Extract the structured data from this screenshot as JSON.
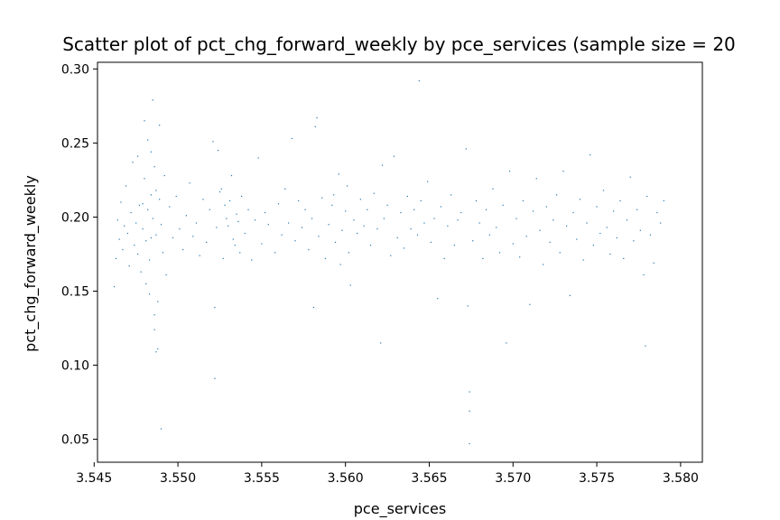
{
  "chart_data": {
    "type": "scatter",
    "title": "Scatter plot of pct_chg_forward_weekly by pce_services (sample size = 20",
    "xlabel": "pce_services",
    "ylabel": "pct_chg_forward_weekly",
    "xlim": [
      3.5452,
      3.5813
    ],
    "ylim": [
      0.0345,
      0.3045
    ],
    "xticks": [
      "3.545",
      "3.550",
      "3.555",
      "3.560",
      "3.565",
      "3.570",
      "3.575",
      "3.580"
    ],
    "xtick_values": [
      3.545,
      3.55,
      3.555,
      3.56,
      3.565,
      3.57,
      3.575,
      3.58
    ],
    "yticks": [
      "0.05",
      "0.10",
      "0.15",
      "0.20",
      "0.25",
      "0.30"
    ],
    "ytick_values": [
      0.05,
      0.1,
      0.15,
      0.2,
      0.25,
      0.3
    ],
    "grid": false,
    "point_color": "#1f77b4",
    "marker": "pixel",
    "points": [
      [
        3.5462,
        0.153
      ],
      [
        3.5463,
        0.172
      ],
      [
        3.5464,
        0.198
      ],
      [
        3.5465,
        0.185
      ],
      [
        3.5466,
        0.21
      ],
      [
        3.5467,
        0.178
      ],
      [
        3.5468,
        0.194
      ],
      [
        3.5469,
        0.221
      ],
      [
        3.547,
        0.189
      ],
      [
        3.5471,
        0.167
      ],
      [
        3.5472,
        0.203
      ],
      [
        3.5473,
        0.237
      ],
      [
        3.5474,
        0.181
      ],
      [
        3.5475,
        0.196
      ],
      [
        3.5476,
        0.175
      ],
      [
        3.5477,
        0.208
      ],
      [
        3.5478,
        0.163
      ],
      [
        3.5479,
        0.192
      ],
      [
        3.548,
        0.226
      ],
      [
        3.5481,
        0.184
      ],
      [
        3.5482,
        0.205
      ],
      [
        3.5483,
        0.171
      ],
      [
        3.5484,
        0.215
      ],
      [
        3.5485,
        0.199
      ],
      [
        3.5486,
        0.234
      ],
      [
        3.5487,
        0.188
      ],
      [
        3.5488,
        0.143
      ],
      [
        3.5489,
        0.212
      ],
      [
        3.549,
        0.195
      ],
      [
        3.5491,
        0.176
      ],
      [
        3.5492,
        0.228
      ],
      [
        3.5493,
        0.161
      ],
      [
        3.5476,
        0.241
      ],
      [
        3.548,
        0.265
      ],
      [
        3.5485,
        0.279
      ],
      [
        3.5484,
        0.244
      ],
      [
        3.5482,
        0.252
      ],
      [
        3.5489,
        0.262
      ],
      [
        3.5486,
        0.124
      ],
      [
        3.5488,
        0.111
      ],
      [
        3.5487,
        0.109
      ],
      [
        3.549,
        0.057
      ],
      [
        3.5483,
        0.148
      ],
      [
        3.5481,
        0.155
      ],
      [
        3.5486,
        0.134
      ],
      [
        3.5479,
        0.209
      ],
      [
        3.5484,
        0.186
      ],
      [
        3.5487,
        0.218
      ],
      [
        3.5495,
        0.207
      ],
      [
        3.5497,
        0.186
      ],
      [
        3.5499,
        0.214
      ],
      [
        3.5501,
        0.192
      ],
      [
        3.5503,
        0.178
      ],
      [
        3.5505,
        0.201
      ],
      [
        3.5507,
        0.223
      ],
      [
        3.5509,
        0.187
      ],
      [
        3.5511,
        0.196
      ],
      [
        3.5513,
        0.174
      ],
      [
        3.5515,
        0.212
      ],
      [
        3.5517,
        0.183
      ],
      [
        3.5519,
        0.205
      ],
      [
        3.5521,
        0.251
      ],
      [
        3.5522,
        0.139
      ],
      [
        3.5522,
        0.091
      ],
      [
        3.5523,
        0.193
      ],
      [
        3.5525,
        0.217
      ],
      [
        3.5527,
        0.172
      ],
      [
        3.5529,
        0.199
      ],
      [
        3.5531,
        0.211
      ],
      [
        3.5533,
        0.185
      ],
      [
        3.5535,
        0.202
      ],
      [
        3.5537,
        0.176
      ],
      [
        3.5524,
        0.245
      ],
      [
        3.5526,
        0.219
      ],
      [
        3.5528,
        0.208
      ],
      [
        3.553,
        0.194
      ],
      [
        3.5532,
        0.228
      ],
      [
        3.5534,
        0.181
      ],
      [
        3.5536,
        0.197
      ],
      [
        3.5538,
        0.214
      ],
      [
        3.554,
        0.189
      ],
      [
        3.5542,
        0.205
      ],
      [
        3.5544,
        0.171
      ],
      [
        3.5546,
        0.198
      ],
      [
        3.5548,
        0.24
      ],
      [
        3.555,
        0.182
      ],
      [
        3.5552,
        0.203
      ],
      [
        3.5554,
        0.195
      ],
      [
        3.5558,
        0.176
      ],
      [
        3.556,
        0.209
      ],
      [
        3.5562,
        0.188
      ],
      [
        3.5564,
        0.219
      ],
      [
        3.5566,
        0.196
      ],
      [
        3.5568,
        0.253
      ],
      [
        3.557,
        0.184
      ],
      [
        3.5572,
        0.211
      ],
      [
        3.5574,
        0.193
      ],
      [
        3.5576,
        0.205
      ],
      [
        3.5578,
        0.178
      ],
      [
        3.558,
        0.199
      ],
      [
        3.5582,
        0.261
      ],
      [
        3.5583,
        0.267
      ],
      [
        3.5584,
        0.187
      ],
      [
        3.5586,
        0.213
      ],
      [
        3.5588,
        0.172
      ],
      [
        3.559,
        0.195
      ],
      [
        3.5592,
        0.208
      ],
      [
        3.5594,
        0.183
      ],
      [
        3.5596,
        0.229
      ],
      [
        3.5598,
        0.191
      ],
      [
        3.56,
        0.204
      ],
      [
        3.5602,
        0.176
      ],
      [
        3.5581,
        0.139
      ],
      [
        3.5593,
        0.215
      ],
      [
        3.5597,
        0.168
      ],
      [
        3.5601,
        0.221
      ],
      [
        3.5603,
        0.154
      ],
      [
        3.5605,
        0.198
      ],
      [
        3.5607,
        0.189
      ],
      [
        3.5609,
        0.212
      ],
      [
        3.5611,
        0.194
      ],
      [
        3.5613,
        0.205
      ],
      [
        3.5615,
        0.181
      ],
      [
        3.5617,
        0.216
      ],
      [
        3.5619,
        0.192
      ],
      [
        3.5621,
        0.115
      ],
      [
        3.5622,
        0.235
      ],
      [
        3.5623,
        0.199
      ],
      [
        3.5625,
        0.208
      ],
      [
        3.5627,
        0.174
      ],
      [
        3.5629,
        0.241
      ],
      [
        3.5631,
        0.186
      ],
      [
        3.5633,
        0.203
      ],
      [
        3.5635,
        0.179
      ],
      [
        3.5637,
        0.214
      ],
      [
        3.5639,
        0.192
      ],
      [
        3.5641,
        0.205
      ],
      [
        3.5643,
        0.188
      ],
      [
        3.5644,
        0.292
      ],
      [
        3.5645,
        0.211
      ],
      [
        3.5647,
        0.196
      ],
      [
        3.5649,
        0.224
      ],
      [
        3.5651,
        0.183
      ],
      [
        3.5653,
        0.199
      ],
      [
        3.5655,
        0.145
      ],
      [
        3.5657,
        0.207
      ],
      [
        3.5659,
        0.172
      ],
      [
        3.5661,
        0.194
      ],
      [
        3.5663,
        0.215
      ],
      [
        3.5665,
        0.181
      ],
      [
        3.5667,
        0.198
      ],
      [
        3.5669,
        0.203
      ],
      [
        3.5672,
        0.246
      ],
      [
        3.5673,
        0.14
      ],
      [
        3.5674,
        0.082
      ],
      [
        3.5674,
        0.069
      ],
      [
        3.5674,
        0.047
      ],
      [
        3.5676,
        0.184
      ],
      [
        3.5678,
        0.211
      ],
      [
        3.568,
        0.196
      ],
      [
        3.5682,
        0.172
      ],
      [
        3.5684,
        0.205
      ],
      [
        3.5686,
        0.188
      ],
      [
        3.5688,
        0.219
      ],
      [
        3.569,
        0.193
      ],
      [
        3.5692,
        0.176
      ],
      [
        3.5694,
        0.208
      ],
      [
        3.5696,
        0.115
      ],
      [
        3.5698,
        0.231
      ],
      [
        3.57,
        0.182
      ],
      [
        3.5702,
        0.199
      ],
      [
        3.5704,
        0.173
      ],
      [
        3.5706,
        0.211
      ],
      [
        3.5708,
        0.187
      ],
      [
        3.571,
        0.141
      ],
      [
        3.5712,
        0.204
      ],
      [
        3.5714,
        0.226
      ],
      [
        3.5716,
        0.191
      ],
      [
        3.5718,
        0.168
      ],
      [
        3.572,
        0.207
      ],
      [
        3.5722,
        0.183
      ],
      [
        3.5724,
        0.198
      ],
      [
        3.5726,
        0.215
      ],
      [
        3.5728,
        0.176
      ],
      [
        3.573,
        0.231
      ],
      [
        3.5732,
        0.194
      ],
      [
        3.5734,
        0.147
      ],
      [
        3.5736,
        0.203
      ],
      [
        3.5738,
        0.185
      ],
      [
        3.574,
        0.212
      ],
      [
        3.5742,
        0.171
      ],
      [
        3.5744,
        0.196
      ],
      [
        3.5746,
        0.242
      ],
      [
        3.5748,
        0.181
      ],
      [
        3.575,
        0.207
      ],
      [
        3.5752,
        0.189
      ],
      [
        3.5754,
        0.218
      ],
      [
        3.5756,
        0.193
      ],
      [
        3.5758,
        0.175
      ],
      [
        3.576,
        0.204
      ],
      [
        3.5762,
        0.186
      ],
      [
        3.5764,
        0.211
      ],
      [
        3.5766,
        0.172
      ],
      [
        3.5768,
        0.198
      ],
      [
        3.577,
        0.227
      ],
      [
        3.5772,
        0.184
      ],
      [
        3.5774,
        0.205
      ],
      [
        3.5776,
        0.191
      ],
      [
        3.5778,
        0.161
      ],
      [
        3.5779,
        0.113
      ],
      [
        3.578,
        0.214
      ],
      [
        3.5782,
        0.188
      ],
      [
        3.5784,
        0.169
      ],
      [
        3.5786,
        0.203
      ],
      [
        3.5788,
        0.196
      ],
      [
        3.579,
        0.211
      ]
    ]
  }
}
